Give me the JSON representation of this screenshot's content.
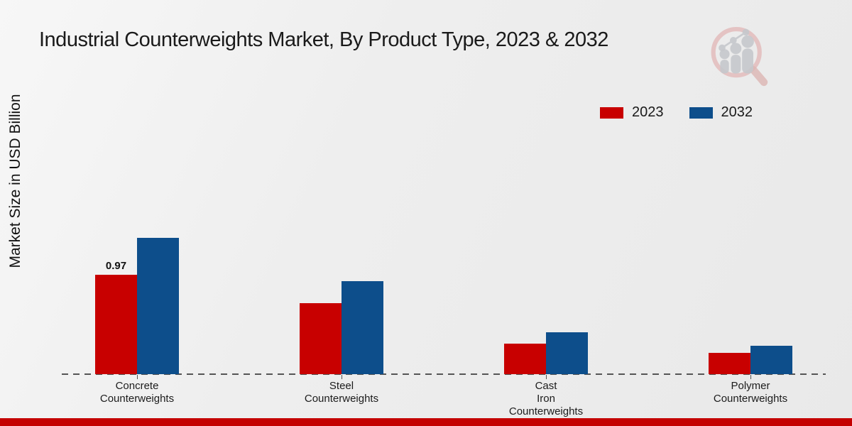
{
  "header": {
    "title": "Industrial Counterweights Market, By Product Type, 2023 & 2032"
  },
  "axes": {
    "y_label": "Market Size in USD Billion"
  },
  "legend": {
    "items": [
      {
        "label": "2023",
        "color": "#c80000"
      },
      {
        "label": "2032",
        "color": "#0d4e8b"
      }
    ]
  },
  "footer": {
    "color": "#c40000"
  },
  "logo": {
    "name": "magnifier-bar-chart-logo",
    "ring_color": "#e3bcbc",
    "glyph_color": "#c6c8cc"
  },
  "chart_data": {
    "type": "bar",
    "title": "Industrial Counterweights Market, By Product Type, 2023 & 2032",
    "xlabel": "",
    "ylabel": "Market Size in USD Billion",
    "categories": [
      "Concrete Counterweights",
      "Steel Counterweights",
      "Cast Iron Counterweights",
      "Polymer Counterweights"
    ],
    "category_label_lines": [
      "Concrete\nCounterweights",
      "Steel\nCounterweights",
      "Cast\nIron\nCounterweights",
      "Polymer\nCounterweights"
    ],
    "series": [
      {
        "name": "2023",
        "color": "#c80000",
        "values": [
          0.97,
          0.69,
          0.3,
          0.21
        ]
      },
      {
        "name": "2032",
        "color": "#0d4e8b",
        "values": [
          1.33,
          0.91,
          0.41,
          0.28
        ]
      }
    ],
    "annotations": [
      {
        "category_index": 0,
        "series_index": 0,
        "text": "0.97"
      }
    ],
    "ylim": [
      0,
      1.4
    ],
    "grid": false,
    "axis_line": "dashed",
    "legend_position": "upper right"
  }
}
